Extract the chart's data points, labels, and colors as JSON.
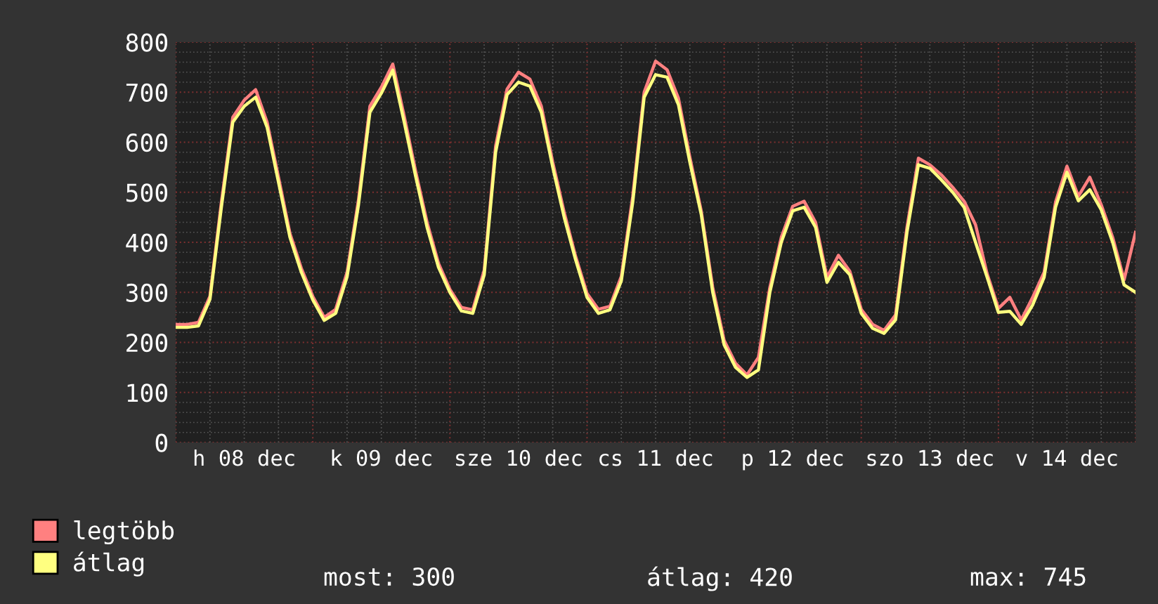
{
  "chart_data": {
    "type": "line",
    "categories": [
      null,
      null,
      null,
      null,
      null,
      null,
      "h 08 dec",
      null,
      null,
      null,
      null,
      null,
      null,
      null,
      null,
      null,
      null,
      null,
      "k 09 dec",
      null,
      null,
      null,
      null,
      null,
      null,
      null,
      null,
      null,
      null,
      null,
      "sze 10 dec",
      null,
      null,
      null,
      null,
      null,
      null,
      null,
      null,
      null,
      null,
      null,
      "cs 11 dec",
      null,
      null,
      null,
      null,
      null,
      null,
      null,
      null,
      null,
      null,
      null,
      "p 12 dec",
      null,
      null,
      null,
      null,
      null,
      null,
      null,
      null,
      null,
      null,
      null,
      "szo 13 dec",
      null,
      null,
      null,
      null,
      null,
      null,
      null,
      null,
      null,
      null,
      null,
      "v 14 dec",
      null,
      null,
      null,
      null,
      null,
      null
    ],
    "series": [
      {
        "name": "legtöbb",
        "color": "#ff8080",
        "values": [
          236,
          236,
          240,
          292,
          480,
          650,
          684,
          705,
          640,
          530,
          418,
          348,
          292,
          250,
          266,
          340,
          485,
          672,
          710,
          756,
          652,
          542,
          440,
          358,
          306,
          270,
          265,
          344,
          592,
          706,
          740,
          726,
          672,
          560,
          460,
          372,
          298,
          266,
          272,
          332,
          492,
          700,
          762,
          745,
          688,
          570,
          462,
          310,
          204,
          158,
          135,
          170,
          310,
          410,
          472,
          482,
          440,
          330,
          374,
          342,
          266,
          236,
          224,
          255,
          430,
          568,
          555,
          535,
          510,
          482,
          435,
          338,
          268,
          290,
          245,
          290,
          340,
          480,
          552,
          492,
          530,
          475,
          410,
          325,
          420
        ]
      },
      {
        "name": "átlag",
        "color": "#ffff80",
        "values": [
          230,
          230,
          233,
          286,
          470,
          640,
          672,
          690,
          630,
          520,
          410,
          340,
          285,
          244,
          258,
          331,
          475,
          660,
          698,
          744,
          640,
          532,
          430,
          350,
          300,
          263,
          258,
          335,
          580,
          695,
          720,
          712,
          660,
          550,
          450,
          365,
          290,
          258,
          265,
          323,
          480,
          690,
          735,
          730,
          675,
          560,
          455,
          300,
          195,
          150,
          130,
          145,
          300,
          400,
          463,
          470,
          430,
          320,
          360,
          335,
          258,
          228,
          218,
          245,
          420,
          555,
          548,
          525,
          500,
          470,
          400,
          331,
          260,
          262,
          236,
          275,
          330,
          470,
          540,
          483,
          505,
          465,
          400,
          315,
          300
        ]
      }
    ],
    "ylim": [
      0,
      800
    ],
    "yticks": [
      0,
      100,
      200,
      300,
      400,
      500,
      600,
      700,
      800
    ],
    "grid": true,
    "legend": "bottom left",
    "annotations": [
      "most: 300",
      "átlag: 420",
      "max: 745"
    ]
  }
}
